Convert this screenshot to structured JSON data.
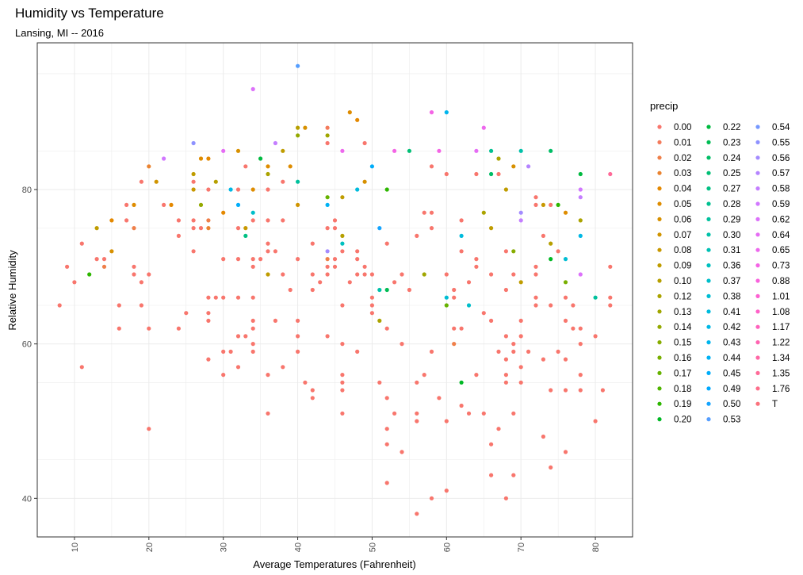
{
  "chart_data": {
    "type": "scatter",
    "title": "Humidity vs Temperature",
    "subtitle": "Lansing, MI -- 2016",
    "xlabel": "Average Temperatures (Fahrenheit)",
    "ylabel": "Relative Humidity",
    "xlim": [
      5,
      85
    ],
    "ylim": [
      35,
      99
    ],
    "x_ticks": [
      10,
      20,
      30,
      40,
      50,
      60,
      70,
      80
    ],
    "y_ticks": [
      40,
      60,
      80
    ],
    "grid": true,
    "legend_position": "right",
    "legend_title": "precip",
    "categories": [
      "0.00",
      "0.01",
      "0.02",
      "0.03",
      "0.04",
      "0.05",
      "0.06",
      "0.07",
      "0.08",
      "0.09",
      "0.10",
      "0.12",
      "0.13",
      "0.14",
      "0.15",
      "0.16",
      "0.17",
      "0.18",
      "0.19",
      "0.20",
      "0.22",
      "0.23",
      "0.24",
      "0.25",
      "0.27",
      "0.28",
      "0.29",
      "0.30",
      "0.31",
      "0.36",
      "0.37",
      "0.38",
      "0.41",
      "0.42",
      "0.43",
      "0.44",
      "0.45",
      "0.49",
      "0.50",
      "0.53",
      "0.54",
      "0.55",
      "0.56",
      "0.57",
      "0.58",
      "0.59",
      "0.62",
      "0.64",
      "0.65",
      "0.73",
      "0.88",
      "1.01",
      "1.08",
      "1.17",
      "1.22",
      "1.34",
      "1.35",
      "1.76",
      "T"
    ],
    "points": [
      [
        8,
        65,
        "0.00"
      ],
      [
        9,
        70,
        "0.00"
      ],
      [
        10,
        68,
        "0.00"
      ],
      [
        11,
        73,
        "0.00"
      ],
      [
        11,
        57,
        "0.00"
      ],
      [
        12,
        69,
        "0.19"
      ],
      [
        13,
        75,
        "0.09"
      ],
      [
        13,
        71,
        "0.00"
      ],
      [
        14,
        70,
        "0.02"
      ],
      [
        14,
        71,
        "0.00"
      ],
      [
        15,
        76,
        "0.04"
      ],
      [
        15,
        72,
        "0.06"
      ],
      [
        16,
        65,
        "0.00"
      ],
      [
        16,
        62,
        "0.00"
      ],
      [
        17,
        78,
        "0.00"
      ],
      [
        17,
        76,
        "0.00"
      ],
      [
        18,
        78,
        "0.05"
      ],
      [
        18,
        75,
        "0.02"
      ],
      [
        18,
        70,
        "0.00"
      ],
      [
        18,
        69,
        "0.00"
      ],
      [
        19,
        81,
        "0.00"
      ],
      [
        19,
        68,
        "0.00"
      ],
      [
        19,
        65,
        "0.00"
      ],
      [
        20,
        83,
        "0.03"
      ],
      [
        20,
        69,
        "0.00"
      ],
      [
        20,
        62,
        "0.00"
      ],
      [
        20,
        49,
        "0.00"
      ],
      [
        21,
        81,
        "0.07"
      ],
      [
        22,
        84,
        "0.59"
      ],
      [
        22,
        78,
        "0.00"
      ],
      [
        23,
        78,
        "0.04"
      ],
      [
        24,
        76,
        "0.00"
      ],
      [
        24,
        74,
        "0.00"
      ],
      [
        24,
        62,
        "0.00"
      ],
      [
        25,
        64,
        "0.00"
      ],
      [
        26,
        86,
        "0.55"
      ],
      [
        26,
        82,
        "0.09"
      ],
      [
        26,
        81,
        "0.00"
      ],
      [
        26,
        80,
        "0.08"
      ],
      [
        26,
        76,
        "0.00"
      ],
      [
        26,
        75,
        "0.00"
      ],
      [
        26,
        72,
        "0.00"
      ],
      [
        27,
        84,
        "0.05"
      ],
      [
        27,
        78,
        "0.14"
      ],
      [
        27,
        75,
        "0.00"
      ],
      [
        28,
        84,
        "0.04"
      ],
      [
        28,
        80,
        "0.00"
      ],
      [
        28,
        76,
        "0.02"
      ],
      [
        28,
        75,
        "0.03"
      ],
      [
        28,
        66,
        "0.00"
      ],
      [
        28,
        64,
        "0.00"
      ],
      [
        28,
        63,
        "0.00"
      ],
      [
        28,
        58,
        "0.00"
      ],
      [
        29,
        81,
        "0.10"
      ],
      [
        29,
        66,
        "0.00"
      ],
      [
        30,
        85,
        "0.64"
      ],
      [
        30,
        77,
        "0.04"
      ],
      [
        30,
        71,
        "0.00"
      ],
      [
        30,
        66,
        "0.00"
      ],
      [
        30,
        59,
        "0.00"
      ],
      [
        30,
        56,
        "0.00"
      ],
      [
        31,
        80,
        "0.42"
      ],
      [
        31,
        59,
        "0.00"
      ],
      [
        32,
        85,
        "0.06"
      ],
      [
        32,
        80,
        "0.00"
      ],
      [
        32,
        78,
        "0.45"
      ],
      [
        32,
        75,
        "0.00"
      ],
      [
        32,
        71,
        "0.00"
      ],
      [
        32,
        66,
        "0.00"
      ],
      [
        32,
        61,
        "0.00"
      ],
      [
        32,
        57,
        "0.00"
      ],
      [
        33,
        83,
        "0.00"
      ],
      [
        33,
        75,
        "0.08"
      ],
      [
        33,
        74,
        "0.27"
      ],
      [
        33,
        61,
        "0.00"
      ],
      [
        34,
        93,
        "0.62"
      ],
      [
        34,
        80,
        "0.05"
      ],
      [
        34,
        77,
        "0.37"
      ],
      [
        34,
        76,
        "0.00"
      ],
      [
        34,
        71,
        "0.00"
      ],
      [
        34,
        70,
        "0.00"
      ],
      [
        34,
        66,
        "0.00"
      ],
      [
        34,
        63,
        "0.00"
      ],
      [
        34,
        62,
        "0.00"
      ],
      [
        34,
        60,
        "0.00"
      ],
      [
        34,
        59,
        "0.00"
      ],
      [
        35,
        84,
        "0.22"
      ],
      [
        35,
        71,
        "0.00"
      ],
      [
        36,
        83,
        "0.05"
      ],
      [
        36,
        82,
        "0.12"
      ],
      [
        36,
        80,
        "0.00"
      ],
      [
        36,
        76,
        "0.00"
      ],
      [
        36,
        73,
        "0.00"
      ],
      [
        36,
        72,
        "0.00"
      ],
      [
        36,
        69,
        "0.09"
      ],
      [
        36,
        56,
        "0.00"
      ],
      [
        36,
        51,
        "0.00"
      ],
      [
        37,
        86,
        "0.58"
      ],
      [
        37,
        72,
        "0.00"
      ],
      [
        37,
        63,
        "0.00"
      ],
      [
        38,
        85,
        "0.09"
      ],
      [
        38,
        81,
        "0.00"
      ],
      [
        38,
        76,
        "0.00"
      ],
      [
        38,
        69,
        "0.00"
      ],
      [
        38,
        57,
        "0.00"
      ],
      [
        39,
        83,
        "0.05"
      ],
      [
        39,
        67,
        "0.00"
      ],
      [
        40,
        96,
        "0.53"
      ],
      [
        40,
        88,
        "0.10"
      ],
      [
        40,
        87,
        "0.14"
      ],
      [
        40,
        81,
        "0.29"
      ],
      [
        40,
        78,
        "0.07"
      ],
      [
        40,
        71,
        "0.00"
      ],
      [
        40,
        63,
        "0.00"
      ],
      [
        40,
        61,
        "0.00"
      ],
      [
        40,
        59,
        "0.00"
      ],
      [
        41,
        88,
        "0.06"
      ],
      [
        41,
        55,
        "0.00"
      ],
      [
        42,
        73,
        "0.00"
      ],
      [
        42,
        69,
        "0.00"
      ],
      [
        42,
        67,
        "0.00"
      ],
      [
        42,
        54,
        "0.00"
      ],
      [
        42,
        53,
        "0.00"
      ],
      [
        43,
        68,
        "0.00"
      ],
      [
        44,
        88,
        "0.01"
      ],
      [
        44,
        87,
        "0.13"
      ],
      [
        44,
        86,
        "0.00"
      ],
      [
        44,
        79,
        "0.17"
      ],
      [
        44,
        78,
        "0.44"
      ],
      [
        44,
        75,
        "0.00"
      ],
      [
        44,
        72,
        "0.56"
      ],
      [
        44,
        71,
        "0.02"
      ],
      [
        44,
        70,
        "0.00"
      ],
      [
        44,
        69,
        "0.00"
      ],
      [
        44,
        61,
        "0.00"
      ],
      [
        45,
        76,
        "0.00"
      ],
      [
        45,
        75,
        "0.00"
      ],
      [
        45,
        71,
        "0.00"
      ],
      [
        45,
        70,
        "0.00"
      ],
      [
        46,
        85,
        "0.65"
      ],
      [
        46,
        79,
        "0.09"
      ],
      [
        46,
        74,
        "0.10"
      ],
      [
        46,
        73,
        "0.36"
      ],
      [
        46,
        72,
        "0.00"
      ],
      [
        46,
        65,
        "0.00"
      ],
      [
        46,
        60,
        "0.00"
      ],
      [
        46,
        56,
        "0.00"
      ],
      [
        46,
        55,
        "0.00"
      ],
      [
        46,
        54,
        "0.00"
      ],
      [
        46,
        51,
        "0.00"
      ],
      [
        47,
        90,
        "0.05"
      ],
      [
        47,
        68,
        "0.00"
      ],
      [
        48,
        89,
        "0.04"
      ],
      [
        48,
        80,
        "0.41"
      ],
      [
        48,
        72,
        "0.00"
      ],
      [
        48,
        71,
        "0.00"
      ],
      [
        48,
        69,
        "0.00"
      ],
      [
        48,
        59,
        "0.00"
      ],
      [
        49,
        86,
        "0.00"
      ],
      [
        49,
        81,
        "0.06"
      ],
      [
        49,
        70,
        "0.00"
      ],
      [
        49,
        69,
        "0.00"
      ],
      [
        50,
        83,
        "0.45"
      ],
      [
        50,
        69,
        "0.00"
      ],
      [
        50,
        66,
        "0.00"
      ],
      [
        50,
        65,
        "0.00"
      ],
      [
        50,
        64,
        "0.00"
      ],
      [
        51,
        75,
        "0.50"
      ],
      [
        51,
        67,
        "0.30"
      ],
      [
        51,
        63,
        "0.12"
      ],
      [
        51,
        55,
        "0.00"
      ],
      [
        52,
        80,
        "0.19"
      ],
      [
        52,
        73,
        "0.00"
      ],
      [
        52,
        67,
        "0.23"
      ],
      [
        52,
        62,
        "0.00"
      ],
      [
        52,
        53,
        "0.00"
      ],
      [
        52,
        49,
        "0.00"
      ],
      [
        52,
        47,
        "0.00"
      ],
      [
        52,
        42,
        "0.00"
      ],
      [
        53,
        85,
        "0.73"
      ],
      [
        53,
        68,
        "0.00"
      ],
      [
        53,
        51,
        "0.00"
      ],
      [
        54,
        69,
        "0.00"
      ],
      [
        54,
        60,
        "0.00"
      ],
      [
        54,
        46,
        "0.00"
      ],
      [
        55,
        85,
        "0.25"
      ],
      [
        55,
        67,
        "0.00"
      ],
      [
        56,
        74,
        "0.00"
      ],
      [
        56,
        55,
        "0.00"
      ],
      [
        56,
        51,
        "0.00"
      ],
      [
        56,
        50,
        "0.00"
      ],
      [
        56,
        38,
        "0.00"
      ],
      [
        57,
        77,
        "0.00"
      ],
      [
        57,
        69,
        "0.13"
      ],
      [
        57,
        56,
        "0.00"
      ],
      [
        58,
        90,
        "0.73"
      ],
      [
        58,
        83,
        "0.00"
      ],
      [
        58,
        77,
        "0.00"
      ],
      [
        58,
        75,
        "0.00"
      ],
      [
        58,
        59,
        "0.00"
      ],
      [
        58,
        40,
        "0.00"
      ],
      [
        59,
        85,
        "0.73"
      ],
      [
        59,
        53,
        "0.00"
      ],
      [
        60,
        90,
        "0.43"
      ],
      [
        60,
        82,
        "0.00"
      ],
      [
        60,
        69,
        "0.00"
      ],
      [
        60,
        66,
        "0.38"
      ],
      [
        60,
        65,
        "0.17"
      ],
      [
        60,
        50,
        "0.00"
      ],
      [
        60,
        41,
        "0.00"
      ],
      [
        61,
        67,
        "0.00"
      ],
      [
        61,
        66,
        "0.00"
      ],
      [
        61,
        62,
        "0.00"
      ],
      [
        61,
        60,
        "0.02"
      ],
      [
        62,
        76,
        "0.00"
      ],
      [
        62,
        74,
        "0.41"
      ],
      [
        62,
        72,
        "0.00"
      ],
      [
        62,
        62,
        "0.00"
      ],
      [
        62,
        55,
        "0.20"
      ],
      [
        62,
        52,
        "0.00"
      ],
      [
        63,
        68,
        "0.00"
      ],
      [
        63,
        65,
        "0.37"
      ],
      [
        63,
        51,
        "0.00"
      ],
      [
        64,
        85,
        "0.64"
      ],
      [
        64,
        82,
        "0.00"
      ],
      [
        64,
        71,
        "0.00"
      ],
      [
        64,
        70,
        "0.00"
      ],
      [
        64,
        56,
        "0.00"
      ],
      [
        65,
        88,
        "0.65"
      ],
      [
        65,
        77,
        "0.12"
      ],
      [
        65,
        64,
        "0.00"
      ],
      [
        65,
        51,
        "0.00"
      ],
      [
        66,
        85,
        "0.28"
      ],
      [
        66,
        82,
        "0.24"
      ],
      [
        66,
        75,
        "0.09"
      ],
      [
        66,
        69,
        "0.00"
      ],
      [
        66,
        63,
        "0.00"
      ],
      [
        66,
        47,
        "0.00"
      ],
      [
        66,
        43,
        "0.00"
      ],
      [
        67,
        84,
        "0.12"
      ],
      [
        67,
        82,
        "0.00"
      ],
      [
        67,
        59,
        "0.00"
      ],
      [
        67,
        49,
        "0.00"
      ],
      [
        68,
        80,
        "0.09"
      ],
      [
        68,
        72,
        "0.00"
      ],
      [
        68,
        67,
        "0.00"
      ],
      [
        68,
        61,
        "0.00"
      ],
      [
        68,
        58,
        "0.00"
      ],
      [
        68,
        56,
        "0.00"
      ],
      [
        68,
        55,
        "0.00"
      ],
      [
        68,
        40,
        "0.00"
      ],
      [
        69,
        83,
        "0.06"
      ],
      [
        69,
        72,
        "0.15"
      ],
      [
        69,
        69,
        "0.00"
      ],
      [
        69,
        60,
        "0.00"
      ],
      [
        69,
        59,
        "0.00"
      ],
      [
        69,
        51,
        "0.00"
      ],
      [
        69,
        43,
        "0.00"
      ],
      [
        70,
        85,
        "0.30"
      ],
      [
        70,
        77,
        "0.56"
      ],
      [
        70,
        76,
        "0.58"
      ],
      [
        70,
        68,
        "0.09"
      ],
      [
        70,
        63,
        "0.00"
      ],
      [
        70,
        61,
        "0.00"
      ],
      [
        70,
        57,
        "0.00"
      ],
      [
        70,
        55,
        "0.00"
      ],
      [
        71,
        83,
        "0.57"
      ],
      [
        71,
        59,
        "0.00"
      ],
      [
        72,
        79,
        "0.00"
      ],
      [
        72,
        78,
        "0.00"
      ],
      [
        72,
        70,
        "0.00"
      ],
      [
        72,
        69,
        "0.00"
      ],
      [
        72,
        66,
        "0.00"
      ],
      [
        72,
        65,
        "0.00"
      ],
      [
        73,
        78,
        "0.08"
      ],
      [
        73,
        74,
        "0.00"
      ],
      [
        73,
        58,
        "0.00"
      ],
      [
        73,
        48,
        "0.00"
      ],
      [
        74,
        85,
        "0.24"
      ],
      [
        74,
        78,
        "0.00"
      ],
      [
        74,
        73,
        "0.10"
      ],
      [
        74,
        71,
        "0.20"
      ],
      [
        74,
        65,
        "0.00"
      ],
      [
        74,
        54,
        "0.00"
      ],
      [
        74,
        44,
        "0.00"
      ],
      [
        75,
        78,
        "0.19"
      ],
      [
        75,
        72,
        "0.00"
      ],
      [
        75,
        59,
        "0.00"
      ],
      [
        76,
        77,
        "0.05"
      ],
      [
        76,
        71,
        "0.38"
      ],
      [
        76,
        68,
        "0.16"
      ],
      [
        76,
        66,
        "0.00"
      ],
      [
        76,
        63,
        "0.00"
      ],
      [
        76,
        58,
        "0.00"
      ],
      [
        76,
        54,
        "0.00"
      ],
      [
        76,
        46,
        "0.00"
      ],
      [
        77,
        65,
        "0.00"
      ],
      [
        77,
        62,
        "0.00"
      ],
      [
        78,
        82,
        "0.22"
      ],
      [
        78,
        80,
        "0.59"
      ],
      [
        78,
        79,
        "0.58"
      ],
      [
        78,
        76,
        "0.12"
      ],
      [
        78,
        74,
        "0.42"
      ],
      [
        78,
        69,
        "0.62"
      ],
      [
        78,
        62,
        "0.00"
      ],
      [
        78,
        60,
        "0.00"
      ],
      [
        78,
        56,
        "0.00"
      ],
      [
        78,
        54,
        "0.00"
      ],
      [
        80,
        66,
        "0.29"
      ],
      [
        80,
        61,
        "0.00"
      ],
      [
        80,
        50,
        "0.00"
      ],
      [
        81,
        54,
        "0.00"
      ],
      [
        82,
        82,
        "1.35"
      ],
      [
        82,
        70,
        "0.00"
      ],
      [
        82,
        66,
        "0.00"
      ],
      [
        82,
        65,
        "0.00"
      ]
    ]
  }
}
